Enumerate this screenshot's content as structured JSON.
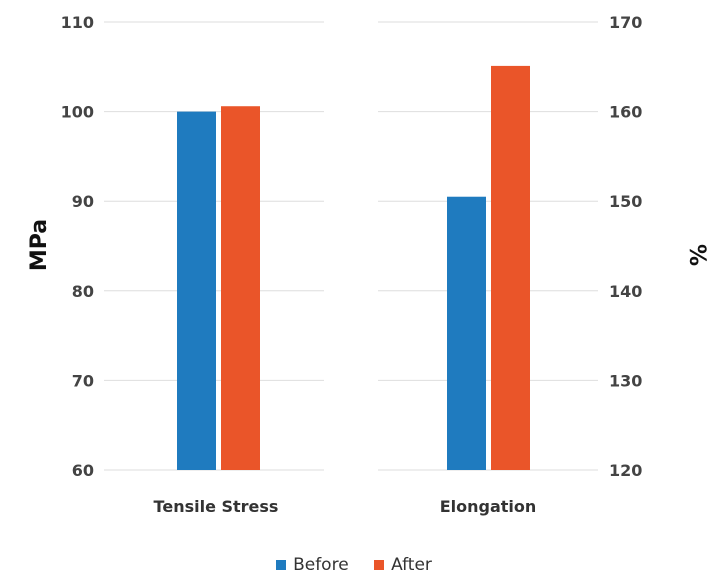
{
  "chart_data": {
    "type": "bar",
    "categories": [
      "Tensile Stress",
      "Elongation"
    ],
    "series": [
      {
        "name": "Before",
        "color": "#1f7bbf",
        "values": [
          100.0,
          150.5
        ]
      },
      {
        "name": "After",
        "color": "#ea5529",
        "values": [
          100.6,
          165.1
        ]
      }
    ],
    "left_axis": {
      "label": "MPa",
      "ylim": [
        60,
        110
      ],
      "ticks": [
        "60",
        "70",
        "80",
        "90",
        "100",
        "110"
      ]
    },
    "right_axis": {
      "label": "%",
      "ylim": [
        120,
        170
      ],
      "ticks": [
        "120",
        "130",
        "140",
        "150",
        "160",
        "170"
      ]
    },
    "category_axis": [
      "left",
      "right"
    ],
    "grid": true,
    "legend_position": "bottom-center"
  }
}
